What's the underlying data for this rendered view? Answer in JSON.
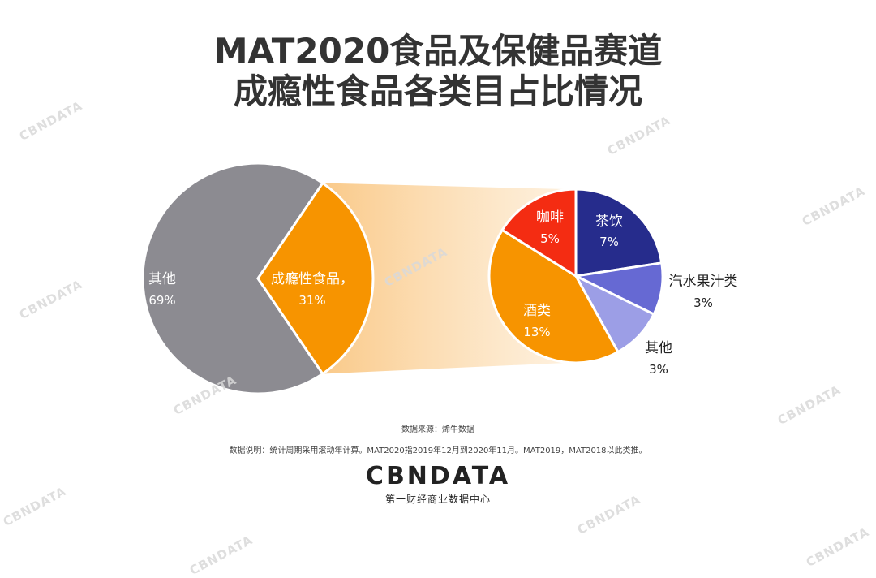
{
  "title": {
    "line1": "MAT2020食品及保健品赛道",
    "line2": "成瘾性食品各类目占比情况"
  },
  "chart_data": {
    "type": "pie",
    "main_pie": {
      "slices": [
        {
          "label": "其他",
          "value_label": "69%",
          "value": 69,
          "color": "#8c8b91"
        },
        {
          "label": "成瘾性食品，",
          "value_label": "31%",
          "value": 31,
          "color": "#f79400"
        }
      ]
    },
    "breakdown_pie": {
      "slices": [
        {
          "label": "茶饮",
          "value_label": "7%",
          "value": 7,
          "color": "#262c8c"
        },
        {
          "label": "汽水果汁类",
          "value_label": "3%",
          "value": 3,
          "color": "#6669d3"
        },
        {
          "label": "其他",
          "value_label": "3%",
          "value": 3,
          "color": "#9c9ee6"
        },
        {
          "label": "酒类",
          "value_label": "13%",
          "value": 13,
          "color": "#f79400"
        },
        {
          "label": "咖啡",
          "value_label": "5%",
          "value": 5,
          "color": "#f42c12"
        }
      ]
    }
  },
  "source": "数据来源：烯牛数据",
  "note": "数据说明：统计周期采用滚动年计算。MAT2020指2019年12月到2020年11月。MAT2019，MAT2018以此类推。",
  "logo": {
    "text": "CBNDATA",
    "sub": "第一财经商业数据中心"
  },
  "watermark": "CBNDATA"
}
